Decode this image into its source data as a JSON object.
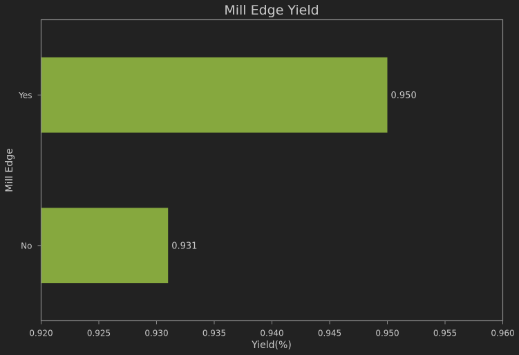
{
  "chart_data": {
    "type": "bar",
    "orientation": "horizontal",
    "title": "Mill Edge Yield",
    "xlabel": "Yield(%)",
    "ylabel": "Mill Edge",
    "categories": [
      "No",
      "Yes"
    ],
    "values": [
      0.931,
      0.95
    ],
    "data_labels": [
      "0.931",
      "0.950"
    ],
    "xlim": [
      0.92,
      0.96
    ],
    "xticks": [
      0.92,
      0.925,
      0.93,
      0.935,
      0.94,
      0.945,
      0.95,
      0.955,
      0.96
    ],
    "xtick_labels": [
      "0.920",
      "0.925",
      "0.930",
      "0.935",
      "0.940",
      "0.945",
      "0.950",
      "0.955",
      "0.960"
    ],
    "grid": false,
    "colors": {
      "background": "#222222",
      "bar": "#86a83e",
      "frame": "#8a8a8a",
      "text": "#c8c8c8"
    }
  }
}
